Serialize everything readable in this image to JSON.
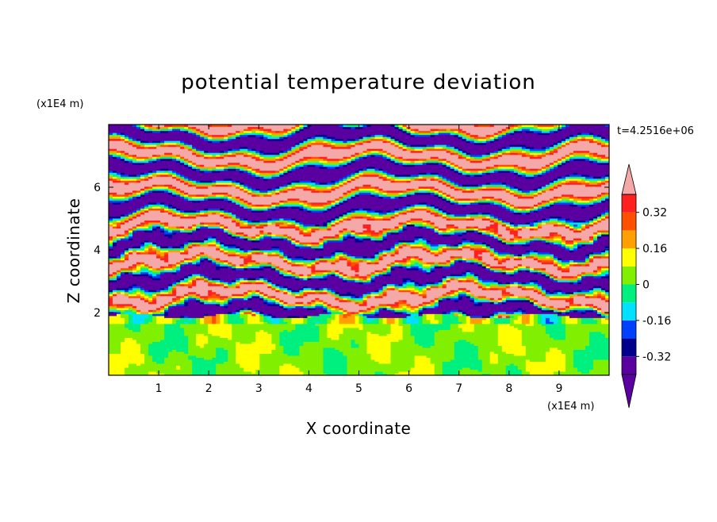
{
  "chart_data": {
    "type": "heatmap",
    "title": "potential temperature deviation",
    "xlabel": "X coordinate",
    "ylabel": "Z coordinate",
    "x_unit": "(x1E4 m)",
    "y_unit": "(x1E4 m)",
    "time_label": "t=4.2516e+06",
    "xlim": [
      0,
      10
    ],
    "ylim": [
      0,
      8
    ],
    "x_ticks": [
      "1",
      "2",
      "3",
      "4",
      "5",
      "6",
      "7",
      "8",
      "9"
    ],
    "y_ticks": [
      "2",
      "4",
      "6"
    ],
    "colorbar": {
      "tick_labels": [
        "0.32",
        "0.16",
        "0",
        "-0.16",
        "-0.32"
      ],
      "tick_values": [
        0.32,
        0.16,
        0,
        -0.16,
        -0.32
      ],
      "levels": [
        -0.4,
        -0.32,
        -0.24,
        -0.16,
        -0.08,
        0,
        0.08,
        0.16,
        0.24,
        0.32,
        0.4
      ],
      "colors": [
        "#5a00a0",
        "#00008c",
        "#0040ff",
        "#00e0ff",
        "#00f080",
        "#80f000",
        "#ffff00",
        "#ffa000",
        "#ff5000",
        "#ff2020"
      ],
      "under_color": "#5a00a0",
      "over_color": "#f4a8a8"
    },
    "regions": {
      "lower_layer_z": [
        0,
        2
      ],
      "lower_layer_dominant": [
        "#80f000",
        "#00f080"
      ],
      "upper_layer_z": [
        2,
        8
      ],
      "upper_layer_dominant": [
        "#5a00a0",
        "#f4a8a8"
      ]
    }
  }
}
